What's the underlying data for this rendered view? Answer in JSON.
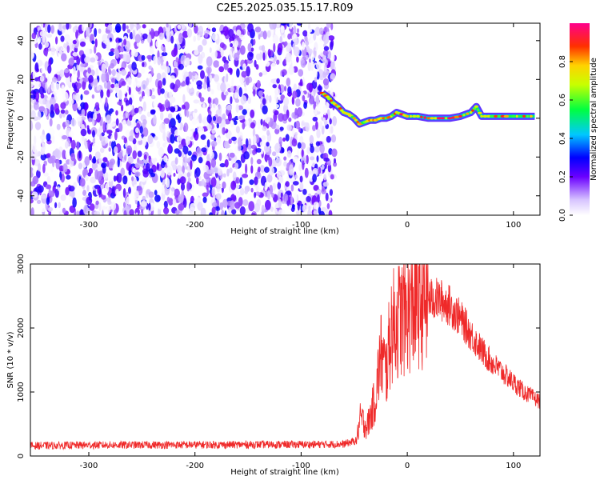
{
  "title": "C2E5.2025.035.15.17.R09",
  "chart_data": [
    {
      "type": "heatmap",
      "xlabel": "Height of straight line (km)",
      "ylabel": "Frequency (Hz)",
      "xlim": [
        -355,
        125
      ],
      "ylim": [
        -50,
        49
      ],
      "xticks": [
        -300,
        -200,
        -100,
        0,
        100
      ],
      "yticks": [
        -40,
        -20,
        0,
        20,
        40
      ],
      "colorbar": {
        "label": "Normalized spectral amplitude",
        "range": [
          0,
          1
        ],
        "ticks": [
          "0.0",
          "0.2",
          "0.4",
          "0.6",
          "0.8"
        ],
        "tick_values": [
          0,
          0.2,
          0.4,
          0.6,
          0.8
        ],
        "colormap": "rainbow"
      },
      "noise_region": {
        "x": [
          -355,
          -68
        ],
        "amplitude": [
          0.0,
          0.3
        ]
      },
      "signal_track": [
        {
          "x": -80,
          "y": 13
        },
        {
          "x": -75,
          "y": 11
        },
        {
          "x": -70,
          "y": 8
        },
        {
          "x": -65,
          "y": 6
        },
        {
          "x": -60,
          "y": 3
        },
        {
          "x": -55,
          "y": 2
        },
        {
          "x": -50,
          "y": 0
        },
        {
          "x": -45,
          "y": -3
        },
        {
          "x": -40,
          "y": -2
        },
        {
          "x": -35,
          "y": -1
        },
        {
          "x": -30,
          "y": -1
        },
        {
          "x": -25,
          "y": 0
        },
        {
          "x": -20,
          "y": 0
        },
        {
          "x": -15,
          "y": 1
        },
        {
          "x": -10,
          "y": 3
        },
        {
          "x": -5,
          "y": 2
        },
        {
          "x": 0,
          "y": 1
        },
        {
          "x": 10,
          "y": 1
        },
        {
          "x": 20,
          "y": 0
        },
        {
          "x": 30,
          "y": 0
        },
        {
          "x": 40,
          "y": 0
        },
        {
          "x": 50,
          "y": 1
        },
        {
          "x": 60,
          "y": 3
        },
        {
          "x": 65,
          "y": 6
        },
        {
          "x": 70,
          "y": 1
        },
        {
          "x": 80,
          "y": 1
        },
        {
          "x": 90,
          "y": 1
        },
        {
          "x": 100,
          "y": 1
        },
        {
          "x": 110,
          "y": 1
        },
        {
          "x": 120,
          "y": 1
        }
      ]
    },
    {
      "type": "line",
      "xlabel": "Height of straight line (km)",
      "ylabel": "SNR (10 * v/v)",
      "xlim": [
        -355,
        125
      ],
      "ylim": [
        0,
        3000
      ],
      "xticks": [
        -300,
        -200,
        -100,
        0,
        100
      ],
      "yticks": [
        0,
        1000,
        2000,
        3000
      ],
      "color": "#ef2929",
      "envelope": [
        {
          "x": -355,
          "y": 160
        },
        {
          "x": -300,
          "y": 170
        },
        {
          "x": -200,
          "y": 175
        },
        {
          "x": -100,
          "y": 180
        },
        {
          "x": -60,
          "y": 185
        },
        {
          "x": -48,
          "y": 240
        },
        {
          "x": -44,
          "y": 600
        },
        {
          "x": -38,
          "y": 450
        },
        {
          "x": -30,
          "y": 900
        },
        {
          "x": -25,
          "y": 1600
        },
        {
          "x": -20,
          "y": 1300
        },
        {
          "x": -15,
          "y": 2000
        },
        {
          "x": -10,
          "y": 2100
        },
        {
          "x": 0,
          "y": 2250
        },
        {
          "x": 10,
          "y": 2400
        },
        {
          "x": 20,
          "y": 2450
        },
        {
          "x": 30,
          "y": 2450
        },
        {
          "x": 40,
          "y": 2350
        },
        {
          "x": 50,
          "y": 2150
        },
        {
          "x": 60,
          "y": 1900
        },
        {
          "x": 70,
          "y": 1650
        },
        {
          "x": 80,
          "y": 1450
        },
        {
          "x": 90,
          "y": 1300
        },
        {
          "x": 100,
          "y": 1150
        },
        {
          "x": 110,
          "y": 1000
        },
        {
          "x": 120,
          "y": 900
        },
        {
          "x": 125,
          "y": 850
        }
      ]
    }
  ]
}
